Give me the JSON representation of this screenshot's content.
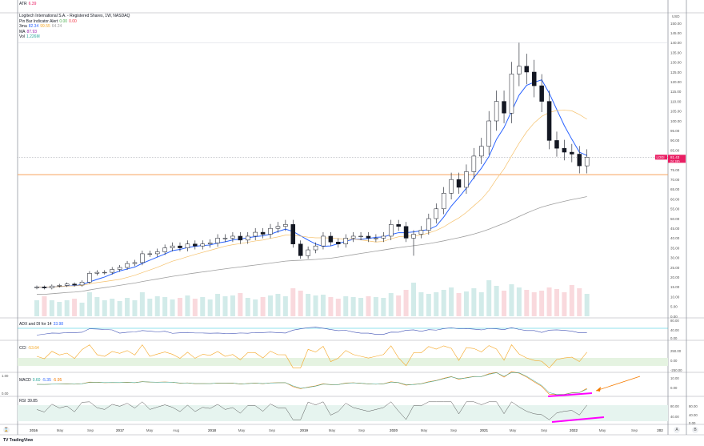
{
  "atr": {
    "label": "ATR",
    "value": "6.39",
    "color": "#e91e63"
  },
  "main_legend": {
    "title": "Logitech International S.A. - Registered Shares, 1W, NASDAQ",
    "pinbar": {
      "label": "Pin Bar Indicator Alert",
      "v1": "0.00",
      "v2": "0.00"
    },
    "ema": {
      "label": "3ma",
      "v1": "82.34",
      "v2": "99.55",
      "v3": "64.24"
    },
    "ma": {
      "label": "MA",
      "value": "87.93"
    },
    "vol": {
      "label": "Vol",
      "value": "1.226M"
    }
  },
  "price_axis": {
    "currency": "USD",
    "ticks": [
      "150.00",
      "145.00",
      "140.00",
      "135.00",
      "130.00",
      "125.00",
      "120.00",
      "115.00",
      "110.00",
      "105.00",
      "100.00",
      "95.00",
      "90.00",
      "85.00",
      "75.00",
      "70.00",
      "65.00",
      "60.00",
      "55.00",
      "50.00",
      "45.00",
      "40.00",
      "35.00",
      "30.00",
      "25.00",
      "20.00",
      "15.00",
      "10.00",
      "5.00",
      "0.00"
    ]
  },
  "last_price": {
    "symbol": "LOGI",
    "value": "81.43",
    "countdown": "2d 18h",
    "color": "#e91e63"
  },
  "adx": {
    "label": "ADX and DI for 14",
    "value": "33.98",
    "ticks": [
      "80.00",
      "40.00",
      "0.00"
    ]
  },
  "cci": {
    "label": "CCI",
    "value": "-53.64",
    "ticks": [
      "250.00",
      "0.00",
      "-250.00"
    ]
  },
  "macd": {
    "label": "MACD",
    "v1": "0.60",
    "v2": "-5.35",
    "v3": "-5.95",
    "ticks": [
      "10.00",
      "0.00"
    ],
    "left_ticks": [
      "1.00",
      "0.00"
    ]
  },
  "rsi": {
    "label": "RSI",
    "value": "39.85",
    "ticks": [
      "80.00",
      "40.00"
    ],
    "b_ticks": [
      "80.00",
      "40.00",
      "0.00"
    ]
  },
  "time_axis": {
    "labels": [
      "2016",
      "May",
      "Sep",
      "2017",
      "May",
      "Aug",
      "2018",
      "May",
      "Sep",
      "2019",
      "May",
      "Sep",
      "2020",
      "May",
      "Sep",
      "2021",
      "May",
      "Sep",
      "2022",
      "May",
      "Sep",
      "202"
    ]
  },
  "scale_buttons": {
    "a": "A",
    "b": "B"
  },
  "brand": "TradingView",
  "colors": {
    "up": "#ffffff",
    "down": "#131722",
    "ma_fast": "#2962ff",
    "ma_mid": "#f5c16c",
    "ma_slow": "#9e9e9e",
    "support": "#f7a35c",
    "annot_pink": "#ff00ff",
    "annot_orange": "#f57c00"
  },
  "chart_data": {
    "type": "candlestick",
    "interval": "monthly approximation of 1W",
    "start": "2016-01",
    "closes": [
      15,
      14.5,
      15.5,
      15.8,
      16.5,
      16,
      17.5,
      22,
      22.5,
      22.5,
      24,
      25,
      27,
      27.5,
      32,
      32,
      33,
      35,
      36,
      35,
      37,
      36,
      37,
      37.5,
      40,
      40,
      41,
      39,
      41,
      43,
      42,
      45,
      46,
      47,
      37,
      31,
      34,
      36,
      41,
      38,
      37,
      40,
      41,
      41,
      40,
      40,
      41,
      47,
      46,
      40,
      42,
      44,
      50,
      55,
      63,
      70,
      66,
      74,
      82,
      87,
      100,
      110,
      104,
      124,
      128,
      125,
      118,
      110,
      90,
      86,
      84,
      83,
      77,
      81.43
    ],
    "peak_high": 140,
    "support_level": 72.5,
    "volume_m": [
      2,
      2.5,
      2,
      1.8,
      2,
      2.2,
      1.7,
      3,
      2.4,
      2,
      2.2,
      1.9,
      2.3,
      2,
      3,
      2.2,
      2.5,
      2.4,
      2.1,
      2.3,
      2.6,
      2.2,
      2.4,
      2.1,
      2.8,
      2.5,
      2.6,
      2.9,
      2.3,
      2.1,
      2.4,
      2.6,
      2.8,
      2.5,
      3.5,
      3.2,
      2.8,
      2.6,
      2.7,
      2.4,
      2.2,
      2.5,
      2.4,
      2.3,
      2.5,
      2.4,
      2.3,
      2.9,
      2.6,
      3.3,
      4.2,
      3,
      2.8,
      3,
      3.3,
      3.6,
      2.9,
      3.1,
      3.5,
      3,
      4.5,
      3.8,
      3.2,
      4,
      3.6,
      3.3,
      3,
      3.2,
      3.6,
      3.4,
      3,
      3.9,
      3.5,
      2.8
    ],
    "ylim": [
      0,
      155
    ]
  }
}
